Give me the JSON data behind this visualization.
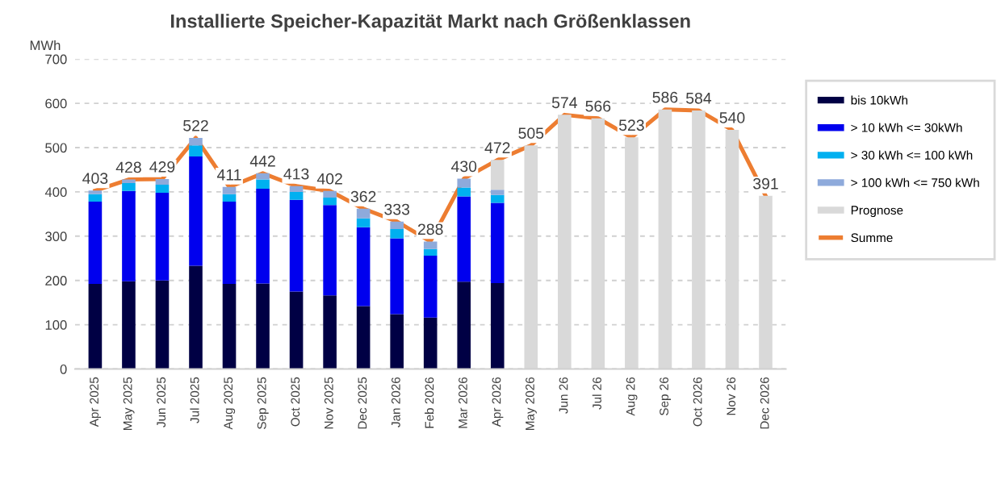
{
  "chart_data": {
    "type": "bar",
    "stacked": true,
    "title": "Installierte Speicher-Kapazität Markt nach Größenklassen",
    "ylabel": "MWh",
    "categories": [
      "Apr 2025",
      "May 2025",
      "Jun 2025",
      "Jul 2025",
      "Aug 2025",
      "Sep 2025",
      "Oct 2025",
      "Nov 2025",
      "Dec 2025",
      "Jan 2026",
      "Feb 2026",
      "Mar 2026",
      "Apr 2026",
      "May 2026",
      "Jun 26",
      "Jul 26",
      "Aug 26",
      "Sep 26",
      "Oct 2026",
      "Nov 26",
      "Dec 2026"
    ],
    "series": [
      {
        "name": "bis 10kWh",
        "color": "#000044",
        "values": [
          192,
          198,
          200,
          233,
          192,
          193,
          175,
          166,
          142,
          124,
          116,
          197,
          194,
          null,
          null,
          null,
          null,
          null,
          null,
          null,
          null
        ]
      },
      {
        "name": "> 10 kWh <= 30kWh",
        "color": "#0000ee",
        "values": [
          186,
          204,
          198,
          247,
          186,
          214,
          207,
          204,
          178,
          171,
          140,
          193,
          181,
          null,
          null,
          null,
          null,
          null,
          null,
          null,
          null
        ]
      },
      {
        "name": "> 30 kWh <= 100 kWh",
        "color": "#00b0f0",
        "values": [
          17,
          18,
          18,
          25,
          17,
          21,
          18,
          17,
          20,
          21,
          15,
          20,
          18,
          null,
          null,
          null,
          null,
          null,
          null,
          null,
          null
        ]
      },
      {
        "name": "> 100 kWh <= 750 kWh",
        "color": "#8eaadb",
        "values": [
          8,
          8,
          13,
          17,
          16,
          14,
          13,
          15,
          22,
          17,
          17,
          20,
          12,
          null,
          null,
          null,
          null,
          null,
          null,
          null,
          null
        ]
      },
      {
        "name": "Prognose",
        "color": "#d9d9d9",
        "values": [
          null,
          null,
          null,
          null,
          null,
          null,
          null,
          null,
          null,
          null,
          null,
          null,
          67,
          505,
          574,
          566,
          523,
          586,
          584,
          540,
          391
        ]
      },
      {
        "name": "Summe",
        "type": "line",
        "color": "#ed7d31",
        "data_labels": true,
        "values": [
          403,
          428,
          429,
          522,
          411,
          442,
          413,
          402,
          362,
          333,
          288,
          430,
          472,
          505,
          574,
          566,
          523,
          586,
          584,
          540,
          391
        ]
      }
    ],
    "ylim": [
      0,
      700
    ],
    "yticks": [
      0,
      100,
      200,
      300,
      400,
      500,
      600,
      700
    ],
    "grid": "y",
    "legend": "right"
  }
}
